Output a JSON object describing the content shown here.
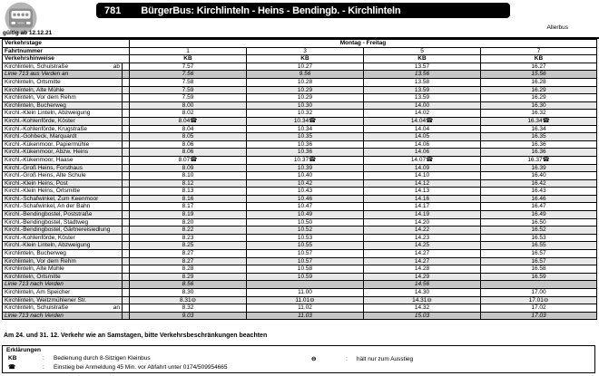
{
  "header": {
    "line_number": "781",
    "title": "BürgerBus: Kirchlinteln - Heins - Bendingb. - Kirchlinteln",
    "operator": "Allerbus",
    "valid_from": "gültig ab 12.12.21"
  },
  "symbols": {
    "phone": "☎",
    "exit_only": "⊖"
  },
  "timetable": {
    "labels": {
      "verkehrstage": "Verkehrstage",
      "fahrtnummer": "Fahrtnummer",
      "verkehrshinweise": "Verkehrshinweise",
      "days": "Montag - Freitag"
    },
    "trip_numbers": [
      "1",
      "3",
      "5",
      "7"
    ],
    "trip_notes": [
      "KB",
      "KB",
      "KB",
      "KB"
    ],
    "rows": [
      {
        "stop": "Kirchlinteln, Schulstraße",
        "marker": "ab",
        "type": "stop",
        "times": [
          "7.57",
          "10.27",
          "13.57",
          "16.27"
        ]
      },
      {
        "stop": "Linie 713 aus Verden an",
        "marker": "",
        "type": "linie",
        "times": [
          "7.56",
          "9.56",
          "13.56",
          "15.56"
        ]
      },
      {
        "stop": "Kirchlinteln, Ortsmitte",
        "marker": "",
        "type": "stop",
        "times": [
          "7.58",
          "10.28",
          "13.58",
          "16.28"
        ]
      },
      {
        "stop": "Kirchlinteln, Alte Mühle",
        "marker": "",
        "type": "stop",
        "times": [
          "7.59",
          "10.29",
          "13.59",
          "16.29"
        ]
      },
      {
        "stop": "Kirchlinteln, Vor dem Rehm",
        "marker": "",
        "type": "stop",
        "times": [
          "7.59",
          "10.29",
          "13.59",
          "16.29"
        ]
      },
      {
        "stop": "Kirchlinteln, Bucherweg",
        "marker": "",
        "type": "stop",
        "times": [
          "8.00",
          "10.30",
          "14.00",
          "16.30"
        ]
      },
      {
        "stop": "Kirchl.-Klein Linteln, Abzweigung",
        "marker": "",
        "type": "stop",
        "times": [
          "8.02",
          "10.32",
          "14.02",
          "16.32"
        ]
      },
      {
        "stop": "Kirchl.-Kohlenförde, Köster",
        "marker": "",
        "type": "stop",
        "times": [
          "8.04☎",
          "10.34☎",
          "14.04☎",
          "16.34☎"
        ]
      },
      {
        "stop": "Kirchl.-Kohlenförde, Krugstraße",
        "marker": "",
        "type": "stop",
        "times": [
          "8.04",
          "10.34",
          "14.04",
          "16.34"
        ]
      },
      {
        "stop": "Kirchl.-Gohbeck, Marquardt",
        "marker": "",
        "type": "stop",
        "times": [
          "8.05",
          "10.35",
          "14.05",
          "16.35"
        ]
      },
      {
        "stop": "Kirchl.-Kükenmoor, Papiermühle",
        "marker": "",
        "type": "stop",
        "times": [
          "8.06",
          "10.36",
          "14.06",
          "16.36"
        ]
      },
      {
        "stop": "Kirchl.-Kükenmoor, Abzw. Heins",
        "marker": "",
        "type": "stop",
        "times": [
          "8.06",
          "10.36",
          "14.06",
          "16.36"
        ]
      },
      {
        "stop": "Kirchl.-Kükenmoor, Haase",
        "marker": "",
        "type": "stop",
        "times": [
          "8.07☎",
          "10.37☎",
          "14.07☎",
          "16.37☎"
        ]
      },
      {
        "stop": "Kirchl.-Groß Heins, Forsthaus",
        "marker": "",
        "type": "stop",
        "times": [
          "8.09",
          "10.39",
          "14.09",
          "16.39"
        ]
      },
      {
        "stop": "Kirchl.-Groß Heins, Alte Schule",
        "marker": "",
        "type": "stop",
        "times": [
          "8.10",
          "10.40",
          "14.10",
          "16.40"
        ]
      },
      {
        "stop": "Kirchl.-Klein Heins, Post",
        "marker": "",
        "type": "stop",
        "times": [
          "8.12",
          "10.42",
          "14.12",
          "16.42"
        ]
      },
      {
        "stop": "Kirchl.-Klein Heins, Ortsmitte",
        "marker": "",
        "type": "stop",
        "times": [
          "8.13",
          "10.43",
          "14.13",
          "16.43"
        ]
      },
      {
        "stop": "Kirchl.-Schafwinkel, Zum Keenmoor",
        "marker": "",
        "type": "stop",
        "times": [
          "8.16",
          "10.46",
          "14.16",
          "16.46"
        ]
      },
      {
        "stop": "Kirchl.-Schafwinkel, An der Bahn",
        "marker": "",
        "type": "stop",
        "times": [
          "8.17",
          "10.47",
          "14.17",
          "16.47"
        ]
      },
      {
        "stop": "Kirchl.-Bendingbostel, Poststraße",
        "marker": "",
        "type": "stop",
        "times": [
          "8.19",
          "10.49",
          "14.19",
          "16.49"
        ]
      },
      {
        "stop": "Kirchl.-Bendingbostel, Stadtweg",
        "marker": "",
        "type": "stop",
        "times": [
          "8.20",
          "10.50",
          "14.20",
          "16.50"
        ]
      },
      {
        "stop": "Kirchl.-Bendingbostel, Gärtnereisiedlung",
        "marker": "",
        "type": "stop",
        "times": [
          "8.22",
          "10.52",
          "14.22",
          "16.52"
        ]
      },
      {
        "stop": "Kirchl.-Kohlenförde, Köster",
        "marker": "",
        "type": "stop",
        "times": [
          "8.23",
          "10.53",
          "14.23",
          "16.53"
        ]
      },
      {
        "stop": "Kirchl.-Klein Linteln, Abzweigung",
        "marker": "",
        "type": "stop",
        "times": [
          "8.25",
          "10.55",
          "14.25",
          "16.55"
        ]
      },
      {
        "stop": "Kirchlinteln, Bucherweg",
        "marker": "",
        "type": "stop",
        "times": [
          "8.27",
          "10.57",
          "14.27",
          "16.57"
        ]
      },
      {
        "stop": "Kirchlinteln, Vor dem Rehm",
        "marker": "",
        "type": "stop",
        "times": [
          "8.27",
          "10.57",
          "14.27",
          "16.57"
        ]
      },
      {
        "stop": "Kirchlinteln, Alte Mühle",
        "marker": "",
        "type": "stop",
        "times": [
          "8.28",
          "10.58",
          "14.28",
          "16.58"
        ]
      },
      {
        "stop": "Kirchlinteln, Ortsmitte",
        "marker": "",
        "type": "stop",
        "times": [
          "8.29",
          "10.59",
          "14.29",
          "16.59"
        ]
      },
      {
        "stop": "Linie 713 nach Verden",
        "marker": "",
        "type": "linie",
        "times": [
          "8.56",
          "",
          "14.56",
          ""
        ]
      },
      {
        "stop": "Kirchlinteln, Am Speicher",
        "marker": "",
        "type": "stop",
        "times": [
          "8.30",
          "11.00",
          "14.30",
          "17.00"
        ]
      },
      {
        "stop": "Kirchlinteln, Weitzmühlener Str.",
        "marker": "",
        "type": "stop",
        "times": [
          "8.31⊖",
          "11.01⊖",
          "14.31⊖",
          "17.01⊖"
        ]
      },
      {
        "stop": "Kirchlinteln, Schulstraße",
        "marker": "an",
        "type": "stop",
        "times": [
          "8.32",
          "11.02",
          "14.32",
          "17.02"
        ]
      },
      {
        "stop": "Linie 713 nach Verden",
        "marker": "",
        "type": "linie",
        "times": [
          "9.03",
          "11.03",
          "15.03",
          "17.03"
        ]
      }
    ]
  },
  "footer": {
    "note": "Am 24. und 31. 12. Verkehr wie an Samstagen, bitte Verkehrsbeschränkungen beachten",
    "legend_title": "Erklärungen",
    "legend": [
      {
        "symbol": "KB",
        "colon": ":",
        "text": "Bedienung durch 8-Sitzigen Kleinbus"
      },
      {
        "symbol": "☎",
        "colon": ":",
        "text": "Einstieg bei Anmeldung 45 Min. vor Abfahrt unter 0174/509954665"
      },
      {
        "symbol": "⊖",
        "colon": ":",
        "text": "hält nur zum Ausstieg"
      }
    ]
  }
}
